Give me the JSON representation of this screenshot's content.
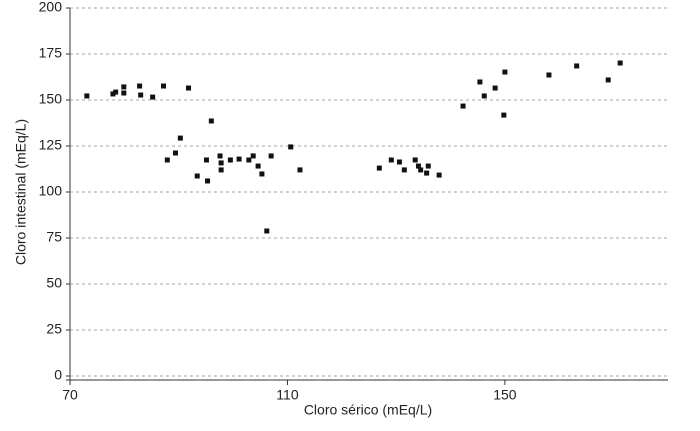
{
  "chart_data": {
    "type": "scatter",
    "xlabel": "Cloro sérico (mEq/L)",
    "ylabel": "Cloro intestinal (mEq/L)",
    "x": [
      73.1,
      77.9,
      78.4,
      79.9,
      79.9,
      83.0,
      82.8,
      85.2,
      87.2,
      91.8,
      87.9,
      89.4,
      90.3,
      96.0,
      93.4,
      95.1,
      95.3,
      97.6,
      97.8,
      97.8,
      99.5,
      101.1,
      102.9,
      103.7,
      104.6,
      105.3,
      107.0,
      106.2,
      110.6,
      112.3,
      126.9,
      129.1,
      130.6,
      131.5,
      133.5,
      134.1,
      134.5,
      135.6,
      135.9,
      137.9,
      142.3,
      145.4,
      146.2,
      148.2,
      150.0,
      149.8,
      158.1,
      163.2,
      169.0,
      171.2
    ],
    "values": [
      152.2,
      153.3,
      154.3,
      153.8,
      157.1,
      152.7,
      157.6,
      151.6,
      157.6,
      156.5,
      117.4,
      121.2,
      129.3,
      138.6,
      108.7,
      117.4,
      106.0,
      119.6,
      115.8,
      112.0,
      117.4,
      117.9,
      117.4,
      119.6,
      114.1,
      109.8,
      119.6,
      78.8,
      124.5,
      112.0,
      113.0,
      117.4,
      116.3,
      112.0,
      117.4,
      114.1,
      112.0,
      110.3,
      114.1,
      109.2,
      146.7,
      159.8,
      152.2,
      156.5,
      165.2,
      141.8,
      163.6,
      168.5,
      160.9,
      170.1
    ],
    "color": "#111111",
    "xlim": [
      70,
      180
    ],
    "xticks": [
      70,
      110,
      150
    ],
    "ylim": [
      0,
      200
    ],
    "yticks": [
      0,
      25,
      50,
      75,
      100,
      125,
      150,
      175,
      200
    ],
    "grid": true
  }
}
